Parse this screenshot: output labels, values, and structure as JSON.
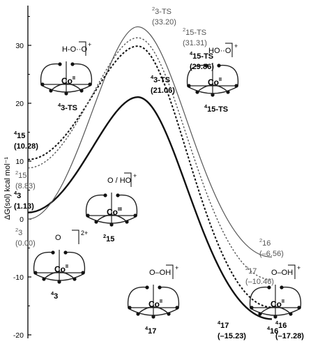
{
  "chart_data": {
    "type": "line",
    "ylabel": "ΔG(sol) kcal mol⁻¹",
    "ylim": [
      -22,
      38
    ],
    "yticks": [
      -20,
      -10,
      0,
      10,
      20,
      30
    ],
    "grid": false,
    "legend": "none",
    "series": [
      {
        "style": "thick-solid",
        "color": "#111111",
        "points": [
          {
            "x": 0.0,
            "y": 1.13
          },
          {
            "x": 0.45,
            "y": 21.06
          },
          {
            "x": 1.0,
            "y": -17.28
          }
        ]
      },
      {
        "style": "thin-solid",
        "color": "#555555",
        "points": [
          {
            "x": 0.0,
            "y": 0.0
          },
          {
            "x": 0.45,
            "y": 33.2
          },
          {
            "x": 1.0,
            "y": -6.56
          }
        ]
      },
      {
        "style": "thick-dash",
        "color": "#111111",
        "points": [
          {
            "x": 0.0,
            "y": 10.28
          },
          {
            "x": 0.45,
            "y": 29.86
          },
          {
            "x": 1.0,
            "y": -15.23
          }
        ]
      },
      {
        "style": "thin-dash",
        "color": "#555555",
        "points": [
          {
            "x": 0.0,
            "y": 8.83
          },
          {
            "x": 0.45,
            "y": 31.31
          },
          {
            "x": 1.0,
            "y": -10.46
          }
        ]
      }
    ],
    "annotations": [
      {
        "id": "a_3_2_ts",
        "sup": "2",
        "name": "3-TS",
        "value": "(33.20)",
        "bold": false
      },
      {
        "id": "a_15_2_ts",
        "sup": "2",
        "name": "15-TS",
        "value": "(31.31)",
        "bold": false
      },
      {
        "id": "a_15_4_ts",
        "sup": "4",
        "name": "15-TS",
        "value": "(29.86)",
        "bold": true
      },
      {
        "id": "a_3_4_ts",
        "sup": "4",
        "name": "3-TS",
        "value": "(21.06)",
        "bold": true
      },
      {
        "id": "a_15_4",
        "sup": "4",
        "name": "15",
        "value": "(10.28)",
        "bold": true
      },
      {
        "id": "a_15_2",
        "sup": "2",
        "name": "15",
        "value": "(8.83)",
        "bold": false
      },
      {
        "id": "a_3_4",
        "sup": "4",
        "name": "3",
        "value": "(1.13)",
        "bold": true
      },
      {
        "id": "a_3_2",
        "sup": "2",
        "name": "3",
        "value": "(0.00)",
        "bold": false
      },
      {
        "id": "a_16_2",
        "sup": "2",
        "name": "16",
        "value": "(–6.56)",
        "bold": false
      },
      {
        "id": "a_17_2",
        "sup": "2",
        "name": "17",
        "value": "(–10.46)",
        "bold": false
      },
      {
        "id": "a_17_4",
        "sup": "4",
        "name": "17",
        "value": "(–15.23)",
        "bold": true
      },
      {
        "id": "a_16_4",
        "sup": "4",
        "name": "16",
        "value": "(–17.28)",
        "bold": true
      }
    ],
    "structures": [
      {
        "id": "s_3ts",
        "sup": "4",
        "name": "3-TS",
        "metal": "Co",
        "ox": "II",
        "ligand": "H-O··O",
        "charge": "+"
      },
      {
        "id": "s_15ts",
        "sup": "4",
        "name": "15-TS",
        "metal": "Co",
        "ox": "II",
        "ligand": "HO··O",
        "charge": "+"
      },
      {
        "id": "s_15",
        "sup": "2",
        "name": "15",
        "metal": "Co",
        "ox": "III",
        "ligand": "O / HO",
        "charge": "+"
      },
      {
        "id": "s_3",
        "sup": "4",
        "name": "3",
        "metal": "Co",
        "ox": "II",
        "ligand": "O",
        "charge": "2+"
      },
      {
        "id": "s_17",
        "sup": "4",
        "name": "17",
        "metal": "Co",
        "ox": "II",
        "ligand": "O–OH",
        "charge": "+"
      },
      {
        "id": "s_16",
        "sup": "4",
        "name": "16",
        "metal": "Co",
        "ox": "II",
        "ligand": "O–OH",
        "charge": "+"
      }
    ]
  }
}
